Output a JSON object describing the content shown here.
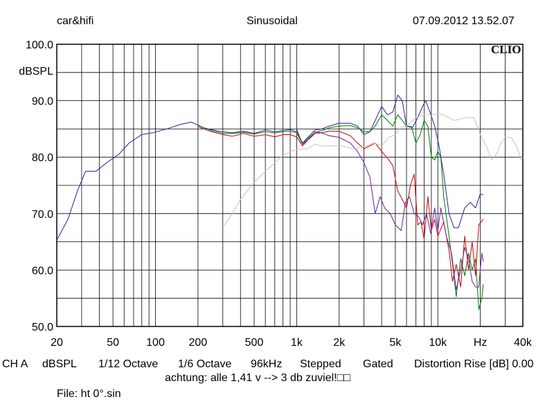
{
  "header": {
    "left": "car&hifi",
    "center": "Sinusoidal",
    "right": "07.09.2012 13.52.07",
    "logo": "CLIO"
  },
  "chart_data": {
    "type": "line",
    "xscale": "log",
    "xlim": [
      20,
      40000
    ],
    "ylim": [
      50,
      100
    ],
    "grid": true,
    "ylabel": "dBSPL",
    "xunit": "Hz",
    "x_ticks": [
      {
        "value": 20,
        "label": "20"
      },
      {
        "value": 50,
        "label": "50"
      },
      {
        "value": 100,
        "label": "100"
      },
      {
        "value": 200,
        "label": "200"
      },
      {
        "value": 500,
        "label": "500"
      },
      {
        "value": 1000,
        "label": "1k"
      },
      {
        "value": 2000,
        "label": "2k"
      },
      {
        "value": 5000,
        "label": "5k"
      },
      {
        "value": 10000,
        "label": "10k"
      },
      {
        "value": 40000,
        "label": "40k"
      }
    ],
    "y_ticks": [
      {
        "value": 100,
        "label": "100.0"
      },
      {
        "value": 90,
        "label": "90.0"
      },
      {
        "value": 80,
        "label": "80.0"
      },
      {
        "value": 70,
        "label": "70.0"
      },
      {
        "value": 60,
        "label": "60.0"
      },
      {
        "value": 50,
        "label": "50.0"
      }
    ],
    "series": [
      {
        "color": "#3333a0",
        "points": [
          [
            20,
            65.3
          ],
          [
            24,
            69
          ],
          [
            28,
            74
          ],
          [
            32,
            77.5
          ],
          [
            38,
            77.5
          ],
          [
            45,
            79
          ],
          [
            55,
            80.5
          ],
          [
            65,
            82.5
          ],
          [
            80,
            84
          ],
          [
            95,
            84.3
          ],
          [
            120,
            85
          ],
          [
            150,
            85.8
          ],
          [
            180,
            86.2
          ],
          [
            220,
            85.2
          ],
          [
            280,
            84.6
          ],
          [
            350,
            84.3
          ],
          [
            420,
            84.6
          ],
          [
            500,
            84.2
          ],
          [
            600,
            84.8
          ],
          [
            700,
            84.5
          ],
          [
            800,
            84.7
          ],
          [
            900,
            84.9
          ],
          [
            1000,
            84.5
          ],
          [
            1100,
            82.5
          ],
          [
            1200,
            83.5
          ],
          [
            1350,
            84.8
          ],
          [
            1500,
            85
          ],
          [
            1700,
            85.5
          ],
          [
            2000,
            86
          ],
          [
            2400,
            86
          ],
          [
            2700,
            85.5
          ],
          [
            3000,
            84
          ],
          [
            3300,
            84.5
          ],
          [
            3600,
            86.5
          ],
          [
            4000,
            89
          ],
          [
            4400,
            87.5
          ],
          [
            4800,
            88
          ],
          [
            5200,
            91
          ],
          [
            5600,
            90
          ],
          [
            6000,
            85.5
          ],
          [
            6600,
            85.2
          ],
          [
            7200,
            87
          ],
          [
            7800,
            89
          ],
          [
            8200,
            90
          ],
          [
            8800,
            88
          ],
          [
            9500,
            85.5
          ],
          [
            10200,
            82
          ],
          [
            11000,
            77
          ],
          [
            12000,
            70
          ],
          [
            13000,
            67.5
          ],
          [
            14000,
            67.5
          ],
          [
            15500,
            71
          ],
          [
            17000,
            72
          ],
          [
            18500,
            71
          ],
          [
            20000,
            73.5
          ],
          [
            21000,
            73.3
          ]
        ]
      },
      {
        "color": "#108010",
        "points": [
          [
            200,
            85.6
          ],
          [
            250,
            84.7
          ],
          [
            300,
            84.2
          ],
          [
            350,
            84.2
          ],
          [
            420,
            84.4
          ],
          [
            500,
            84.1
          ],
          [
            600,
            84.5
          ],
          [
            700,
            84.3
          ],
          [
            800,
            84.5
          ],
          [
            900,
            84.6
          ],
          [
            1000,
            84.3
          ],
          [
            1100,
            82.3
          ],
          [
            1200,
            83.3
          ],
          [
            1350,
            84.4
          ],
          [
            1500,
            84.7
          ],
          [
            1700,
            85.2
          ],
          [
            2000,
            85.5
          ],
          [
            2400,
            85.6
          ],
          [
            2700,
            85.2
          ],
          [
            3000,
            84.5
          ],
          [
            3300,
            84.5
          ],
          [
            3600,
            85.5
          ],
          [
            4000,
            87.5
          ],
          [
            4400,
            86.5
          ],
          [
            4800,
            85.5
          ],
          [
            5200,
            87.5
          ],
          [
            5600,
            86.5
          ],
          [
            6000,
            85.5
          ],
          [
            6500,
            85.4
          ],
          [
            7000,
            82.5
          ],
          [
            7500,
            84
          ],
          [
            8000,
            86.5
          ],
          [
            8500,
            85.5
          ],
          [
            9000,
            80
          ],
          [
            9500,
            79.5
          ],
          [
            10000,
            81
          ],
          [
            10500,
            80
          ],
          [
            11000,
            73
          ],
          [
            12000,
            66
          ],
          [
            13000,
            59
          ],
          [
            13500,
            55.3
          ],
          [
            14500,
            62
          ],
          [
            15500,
            59
          ],
          [
            16500,
            63
          ],
          [
            17500,
            60
          ],
          [
            18500,
            62
          ],
          [
            19500,
            53
          ],
          [
            20500,
            55
          ],
          [
            21000,
            57.5
          ]
        ]
      },
      {
        "color": "#cc1010",
        "points": [
          [
            200,
            85.4
          ],
          [
            250,
            84.5
          ],
          [
            300,
            84
          ],
          [
            350,
            83.7
          ],
          [
            420,
            84.2
          ],
          [
            500,
            83.7
          ],
          [
            600,
            84
          ],
          [
            700,
            83.6
          ],
          [
            800,
            84
          ],
          [
            900,
            84
          ],
          [
            1000,
            83.6
          ],
          [
            1100,
            82
          ],
          [
            1200,
            83
          ],
          [
            1350,
            84.2
          ],
          [
            1500,
            84.3
          ],
          [
            1700,
            84.6
          ],
          [
            2000,
            84.6
          ],
          [
            2400,
            83.8
          ],
          [
            2700,
            82.5
          ],
          [
            3000,
            81.5
          ],
          [
            3300,
            82
          ],
          [
            3600,
            82.5
          ],
          [
            4000,
            81
          ],
          [
            4400,
            79.8
          ],
          [
            4800,
            78.5
          ],
          [
            5200,
            74
          ],
          [
            5600,
            72.5
          ],
          [
            6000,
            71
          ],
          [
            6400,
            75
          ],
          [
            6800,
            77
          ],
          [
            7200,
            68
          ],
          [
            7600,
            68.5
          ],
          [
            8000,
            65.5
          ],
          [
            8500,
            73
          ],
          [
            9000,
            67
          ],
          [
            9500,
            69
          ],
          [
            10000,
            66
          ],
          [
            11000,
            68.5
          ],
          [
            12000,
            63.5
          ],
          [
            12700,
            58
          ],
          [
            13500,
            61
          ],
          [
            14500,
            57
          ],
          [
            15500,
            66
          ],
          [
            16500,
            60
          ],
          [
            17500,
            65
          ],
          [
            18500,
            59
          ],
          [
            19500,
            68
          ],
          [
            21000,
            69
          ]
        ]
      },
      {
        "color": "#7030a0",
        "points": [
          [
            1000,
            85
          ],
          [
            1100,
            82.3
          ],
          [
            1200,
            83
          ],
          [
            1350,
            84.5
          ],
          [
            1500,
            84.3
          ],
          [
            1700,
            83.8
          ],
          [
            2000,
            83.5
          ],
          [
            2400,
            82.5
          ],
          [
            2700,
            81
          ],
          [
            3000,
            79
          ],
          [
            3300,
            76.5
          ],
          [
            3600,
            70
          ],
          [
            3900,
            73
          ],
          [
            4200,
            71
          ],
          [
            4600,
            70
          ],
          [
            5000,
            68
          ],
          [
            5500,
            67
          ],
          [
            5900,
            72
          ],
          [
            6300,
            73
          ],
          [
            6800,
            70
          ],
          [
            7300,
            69.5
          ],
          [
            7800,
            68
          ],
          [
            8300,
            70
          ],
          [
            8900,
            66.5
          ],
          [
            9500,
            71
          ],
          [
            10000,
            67
          ],
          [
            10500,
            71
          ],
          [
            11500,
            66
          ],
          [
            12500,
            63
          ],
          [
            13500,
            56.5
          ],
          [
            14500,
            60
          ],
          [
            15500,
            64
          ],
          [
            16500,
            62
          ],
          [
            17500,
            58
          ],
          [
            18500,
            57
          ],
          [
            19500,
            57
          ],
          [
            20500,
            63
          ],
          [
            21000,
            61.5
          ]
        ]
      },
      {
        "color": "#c8c8c8",
        "points": [
          [
            300,
            67.5
          ],
          [
            350,
            70
          ],
          [
            400,
            72.5
          ],
          [
            500,
            75.5
          ],
          [
            600,
            77.5
          ],
          [
            700,
            79
          ],
          [
            800,
            80.3
          ],
          [
            900,
            81
          ],
          [
            1000,
            81.3
          ],
          [
            1200,
            81.5
          ],
          [
            1350,
            82.3
          ],
          [
            1500,
            82
          ],
          [
            1800,
            82
          ],
          [
            2100,
            82
          ],
          [
            2500,
            81.5
          ],
          [
            3000,
            81.8
          ],
          [
            3500,
            82.5
          ],
          [
            4000,
            82
          ],
          [
            4500,
            83.5
          ],
          [
            5000,
            84
          ],
          [
            5500,
            85.3
          ],
          [
            6000,
            85.5
          ],
          [
            7000,
            87
          ],
          [
            8000,
            87.5
          ],
          [
            9000,
            87.5
          ],
          [
            10000,
            87.7
          ],
          [
            11000,
            87.5
          ],
          [
            13000,
            86.5
          ],
          [
            16000,
            87
          ],
          [
            18000,
            87
          ],
          [
            20000,
            84
          ],
          [
            22000,
            82
          ],
          [
            24000,
            79.5
          ],
          [
            26000,
            80.5
          ],
          [
            28000,
            82.5
          ],
          [
            30000,
            83.5
          ],
          [
            33000,
            83.5
          ],
          [
            36000,
            82
          ],
          [
            39000,
            79.5
          ],
          [
            40000,
            80
          ]
        ]
      }
    ]
  },
  "footer": {
    "channel": "CH A",
    "unit": "dBSPL",
    "smoothing": "1/12 Octave",
    "resolution": "1/6 Octave",
    "sample_rate": "96kHz",
    "mode": "Stepped",
    "gating": "Gated",
    "distortion": "Distortion Rise [dB] 0.00",
    "note": "achtung: alle 1,41 v --> 3 db zuviel!□□",
    "file": "File: ht 0°.sin"
  }
}
